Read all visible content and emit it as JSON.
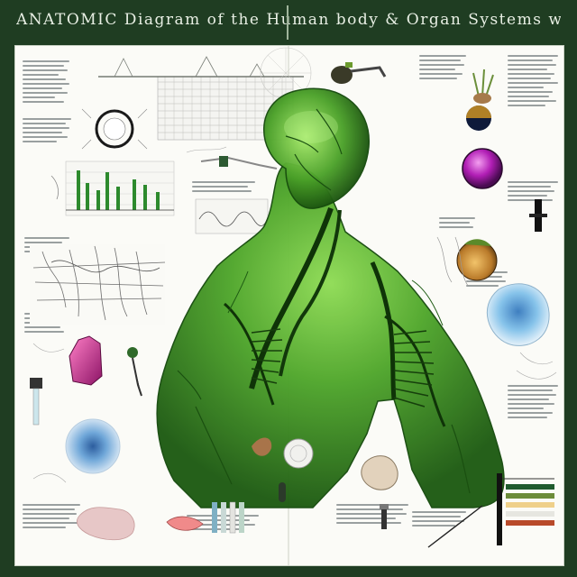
{
  "title": {
    "text": "ANATOMIC Diagram of the Human body & Organ Systems w/ cir",
    "color": "#e8efe4"
  },
  "theme": {
    "frame_color": "#1f3d22",
    "paper_color": "#fbfbf7",
    "figure_green": "#3f9a1e",
    "figure_dark": "#123a0c"
  },
  "illustrations": [
    "green-translucent-human-torso",
    "bar-graph",
    "cross-section-circle",
    "lattice-mesh",
    "magenta-sphere",
    "blue-cell",
    "pink-organ",
    "root-bundle",
    "color-swatch-scale"
  ]
}
